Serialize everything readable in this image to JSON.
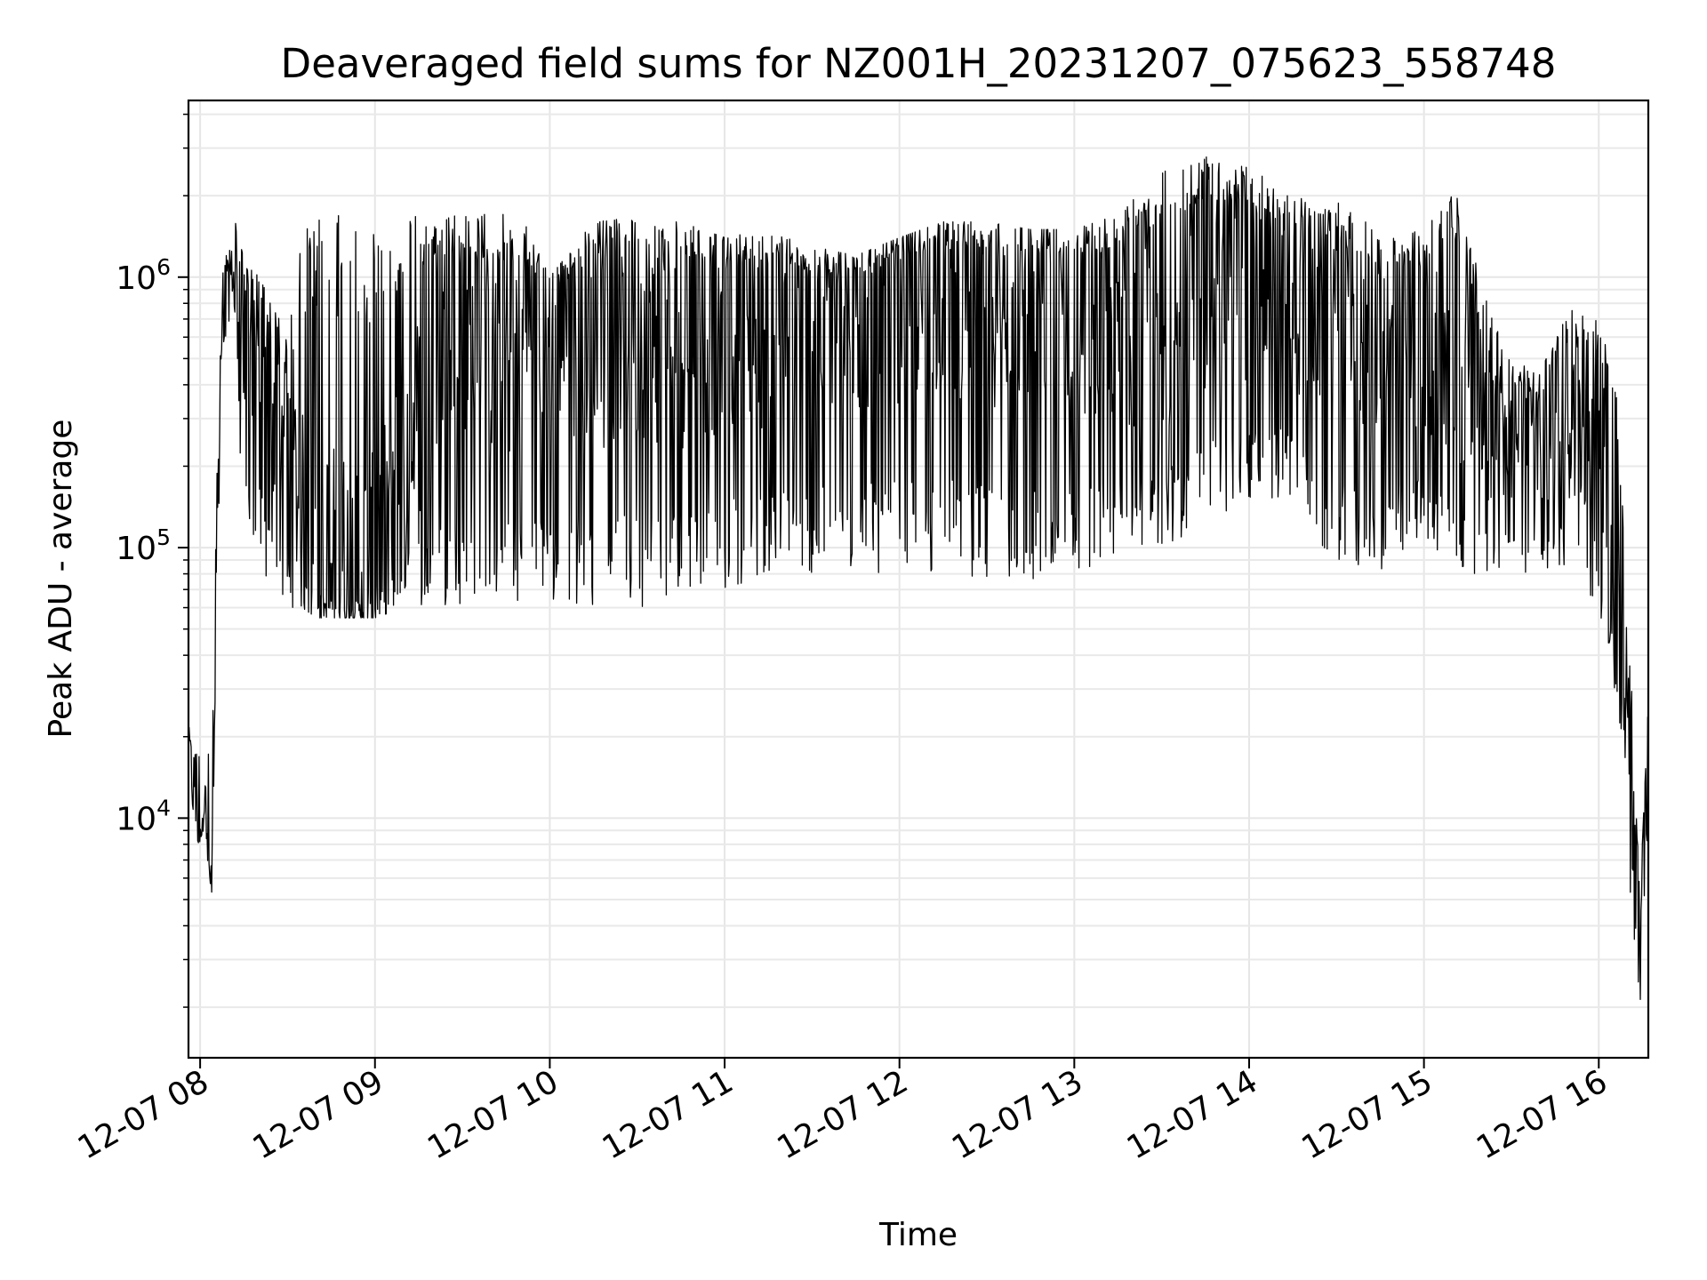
{
  "chart_data": {
    "type": "line",
    "title": "Deaveraged field sums for NZ001H_20231207_075623_558748",
    "xlabel": "Time",
    "ylabel": "Peak ADU - average",
    "yscale": "log",
    "ylim": [
      1300,
      4500000
    ],
    "xlim": [
      "2023-12-07 07:56",
      "2023-12-07 16:17"
    ],
    "x_tick_labels": [
      "12-07 08",
      "12-07 09",
      "12-07 10",
      "12-07 11",
      "12-07 12",
      "12-07 13",
      "12-07 14",
      "12-07 15",
      "12-07 16"
    ],
    "x_tick_times": [
      "2023-12-07 08:00",
      "2023-12-07 09:00",
      "2023-12-07 10:00",
      "2023-12-07 11:00",
      "2023-12-07 12:00",
      "2023-12-07 13:00",
      "2023-12-07 14:00",
      "2023-12-07 15:00",
      "2023-12-07 16:00"
    ],
    "y_tick_labels": [
      {
        "base": "10",
        "exp": "4",
        "value": 10000
      },
      {
        "base": "10",
        "exp": "5",
        "value": 100000
      },
      {
        "base": "10",
        "exp": "6",
        "value": 1000000
      }
    ],
    "grid": true,
    "line_color": "#000000",
    "series": [
      {
        "x": [
          "2023-12-07 07:56",
          "2023-12-07 07:58",
          "2023-12-07 08:00",
          "2023-12-07 08:02",
          "2023-12-07 08:04",
          "2023-12-07 08:06",
          "2023-12-07 08:08",
          "2023-12-07 08:10",
          "2023-12-07 08:12",
          "2023-12-07 08:15",
          "2023-12-07 08:20",
          "2023-12-07 08:25",
          "2023-12-07 08:30",
          "2023-12-07 08:35",
          "2023-12-07 08:40",
          "2023-12-07 08:45",
          "2023-12-07 08:50",
          "2023-12-07 09:00",
          "2023-12-07 09:10",
          "2023-12-07 09:20",
          "2023-12-07 09:30",
          "2023-12-07 09:40",
          "2023-12-07 09:50",
          "2023-12-07 10:00",
          "2023-12-07 10:15",
          "2023-12-07 10:30",
          "2023-12-07 10:45",
          "2023-12-07 11:00",
          "2023-12-07 11:15",
          "2023-12-07 11:30",
          "2023-12-07 11:45",
          "2023-12-07 12:00",
          "2023-12-07 12:15",
          "2023-12-07 12:30",
          "2023-12-07 12:45",
          "2023-12-07 13:00",
          "2023-12-07 13:15",
          "2023-12-07 13:30",
          "2023-12-07 13:45",
          "2023-12-07 14:00",
          "2023-12-07 14:15",
          "2023-12-07 14:30",
          "2023-12-07 14:45",
          "2023-12-07 15:00",
          "2023-12-07 15:10",
          "2023-12-07 15:20",
          "2023-12-07 15:30",
          "2023-12-07 15:40",
          "2023-12-07 15:50",
          "2023-12-07 16:00",
          "2023-12-07 16:05",
          "2023-12-07 16:08",
          "2023-12-07 16:10",
          "2023-12-07 16:12",
          "2023-12-07 16:14",
          "2023-12-07 16:17"
        ],
        "values": [
          20000,
          11000,
          9000,
          15000,
          6000,
          150000,
          800000,
          1000000,
          1100000,
          450000,
          800000,
          250000,
          300000,
          120000,
          100000,
          90000,
          85000,
          80000,
          200000,
          600000,
          500000,
          500000,
          600000,
          700000,
          600000,
          650000,
          600000,
          650000,
          650000,
          650000,
          700000,
          800000,
          900000,
          850000,
          800000,
          800000,
          700000,
          700000,
          900000,
          1000000,
          800000,
          700000,
          600000,
          600000,
          500000,
          300000,
          250000,
          250000,
          250000,
          300000,
          150000,
          50000,
          25000,
          8000,
          3000,
          25000
        ],
        "low_envelope": [
          8000,
          8000,
          8000,
          8000,
          5000,
          80000,
          500000,
          700000,
          700000,
          100000,
          80000,
          70000,
          60000,
          60000,
          55000,
          55000,
          55000,
          55000,
          60000,
          60000,
          60000,
          60000,
          60000,
          60000,
          60000,
          60000,
          65000,
          70000,
          80000,
          80000,
          80000,
          80000,
          80000,
          70000,
          70000,
          70000,
          90000,
          100000,
          120000,
          150000,
          150000,
          80000,
          80000,
          100000,
          80000,
          80000,
          80000,
          80000,
          80000,
          60000,
          30000,
          20000,
          8000,
          2000,
          1800,
          10000
        ],
        "high_envelope": [
          22000,
          19000,
          18000,
          19000,
          16000,
          300000,
          1200000,
          1300000,
          1700000,
          1200000,
          1000000,
          800000,
          600000,
          1600000,
          1700000,
          1700000,
          1700000,
          1700000,
          1700000,
          1700000,
          1700000,
          1750000,
          1700000,
          1000000,
          1600000,
          1700000,
          1600000,
          1400000,
          1500000,
          1300000,
          1200000,
          1400000,
          1600000,
          1600000,
          1500000,
          1500000,
          1700000,
          2600000,
          2800000,
          2700000,
          2000000,
          1900000,
          1500000,
          1500000,
          2500000,
          900000,
          500000,
          450000,
          800000,
          700000,
          500000,
          200000,
          40000,
          30000,
          5000,
          27000
        ]
      }
    ]
  }
}
